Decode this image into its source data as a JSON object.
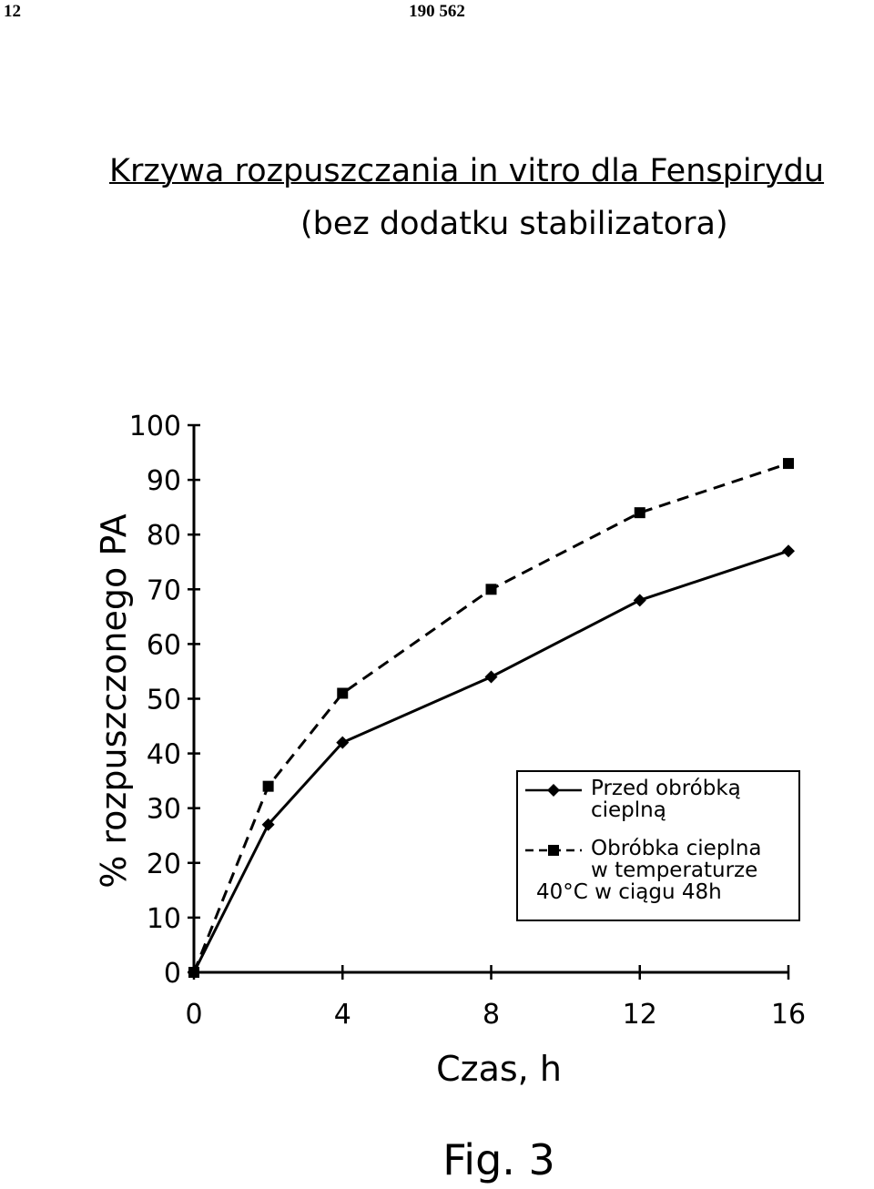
{
  "page_header": {
    "page_number": "12",
    "patent_number": "190 562"
  },
  "chart_data": {
    "type": "line",
    "title": "Krzywa rozpuszczania in vitro dla Fenspirydu",
    "subtitle": "(bez dodatku stabilizatora)",
    "xlabel": "Czas, h",
    "ylabel": "% rozpuszczonego PA",
    "xlim": [
      0,
      16
    ],
    "ylim": [
      0,
      100
    ],
    "x_ticks": [
      0,
      4,
      8,
      12,
      16
    ],
    "y_ticks": [
      0,
      10,
      20,
      30,
      40,
      50,
      60,
      70,
      80,
      90,
      100
    ],
    "x": [
      0,
      2,
      4,
      8,
      12,
      16
    ],
    "series": [
      {
        "name": "Przed obróbką cieplną",
        "values": [
          0,
          27,
          42,
          54,
          68,
          77
        ],
        "marker": "diamond",
        "line": "solid"
      },
      {
        "name": "Obróbka cieplna w temperaturze 40°C w ciągu 48h",
        "values": [
          0,
          34,
          51,
          70,
          84,
          93
        ],
        "marker": "square",
        "line": "dashed"
      }
    ],
    "grid": false,
    "legend_position": "lower-right",
    "legend_lines": [
      [
        "Przed obróbką",
        "cieplną"
      ],
      [
        "Obróbka cieplna",
        "w temperaturze",
        "40°C w ciągu 48h"
      ]
    ]
  },
  "figure_label": "Fig. 3"
}
